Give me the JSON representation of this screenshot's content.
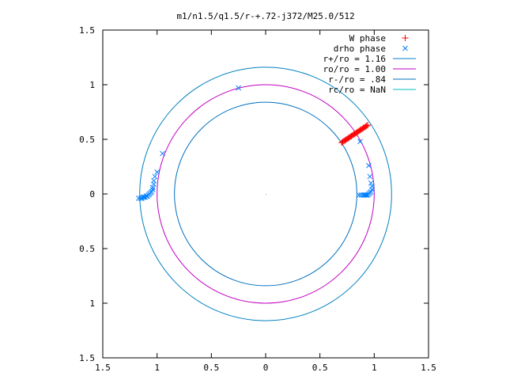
{
  "chart_data": {
    "type": "scatter",
    "title": "m1/n1.5/q1.5/r-+.72-j372/M25.0/512",
    "xlabel": "",
    "ylabel": "",
    "xlim": [
      -1.5,
      1.5
    ],
    "ylim": [
      -1.5,
      1.5
    ],
    "x_ticks": [
      -1.5,
      -1,
      -0.5,
      0,
      0.5,
      1,
      1.5
    ],
    "x_tick_labels": [
      "1.5",
      "1",
      "0.5",
      "0",
      "0.5",
      "1",
      "1.5"
    ],
    "y_ticks": [
      1.5,
      1,
      0.5,
      0,
      -0.5,
      -1,
      -1.5
    ],
    "y_tick_labels": [
      "1.5",
      "1",
      "0.5",
      "0",
      "0.5",
      "1",
      "1.5"
    ],
    "grid": false,
    "legend_position": "top-right",
    "series": [
      {
        "name": "W phase",
        "kind": "points",
        "marker": "plus",
        "color": "#ff0000",
        "x": [
          0.7,
          0.71,
          0.72,
          0.73,
          0.74,
          0.75,
          0.76,
          0.77,
          0.78,
          0.79,
          0.8,
          0.81,
          0.82,
          0.83,
          0.84,
          0.85,
          0.86,
          0.87,
          0.88,
          0.89,
          0.9,
          0.91,
          0.92,
          0.93,
          0.94
        ],
        "y": [
          0.47,
          0.477,
          0.484,
          0.49,
          0.497,
          0.504,
          0.51,
          0.517,
          0.524,
          0.53,
          0.537,
          0.544,
          0.55,
          0.557,
          0.564,
          0.57,
          0.577,
          0.584,
          0.59,
          0.597,
          0.604,
          0.61,
          0.617,
          0.624,
          0.63
        ]
      },
      {
        "name": "drho phase",
        "kind": "points",
        "marker": "cross",
        "color": "#0080ff",
        "x": [
          -0.25,
          -0.95,
          -1.0,
          -1.02,
          -1.03,
          -1.03,
          -1.04,
          -1.04,
          -1.05,
          -1.06,
          -1.07,
          -1.08,
          -1.09,
          -1.1,
          -1.11,
          -1.12,
          -1.13,
          -1.14,
          -1.15,
          -1.17,
          0.87,
          0.95,
          0.96,
          0.97,
          0.98,
          0.98,
          0.97,
          0.96,
          0.95,
          0.94,
          0.93,
          0.92,
          0.91,
          0.9,
          0.88,
          0.86
        ],
        "y": [
          0.97,
          0.37,
          0.2,
          0.16,
          0.12,
          0.09,
          0.06,
          0.04,
          0.02,
          0.01,
          0.0,
          -0.01,
          -0.02,
          -0.02,
          -0.03,
          -0.03,
          -0.03,
          -0.04,
          -0.04,
          -0.04,
          0.48,
          0.26,
          0.16,
          0.1,
          0.07,
          0.04,
          0.02,
          0.01,
          0.0,
          -0.01,
          -0.01,
          -0.01,
          -0.01,
          -0.01,
          -0.01,
          -0.01
        ]
      },
      {
        "name": "r+/ro = 1.16",
        "kind": "circle",
        "radius": 1.16,
        "color": "#0080c0"
      },
      {
        "name": "ro/ro = 1.00",
        "kind": "circle",
        "radius": 1.0,
        "color": "#c000c0"
      },
      {
        "name": "r-/ro = .84",
        "kind": "circle",
        "radius": 0.84,
        "color": "#0070c0"
      },
      {
        "name": "rc/ro = NaN",
        "kind": "circle",
        "radius": null,
        "color": "#00c0c0"
      }
    ]
  }
}
